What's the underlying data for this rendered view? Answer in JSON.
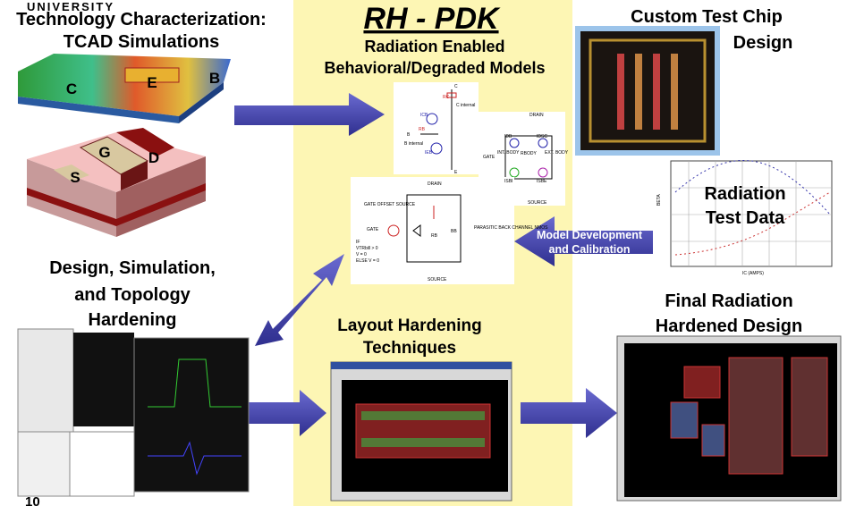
{
  "header": {
    "university": "UNIVERSITY",
    "page_number": "10"
  },
  "center": {
    "title": "RH - PDK",
    "subtitle": [
      "Radiation Enabled",
      "Behavioral/Degraded Models"
    ],
    "bjt_labels": [
      "C",
      "RC",
      "C internal",
      "ICB",
      "RB",
      "B",
      "B internal",
      "IEB",
      "E"
    ],
    "body_labels": [
      "DRAIN",
      "GATE",
      "SOURCE",
      "IDB",
      "IDSC",
      "INT. BODY",
      "RBODY",
      "EXT. BODY",
      "ISBI",
      "ISBE"
    ],
    "parasitic_labels": [
      "DRAIN",
      "GATE OFFSET SOURCE",
      "GATE",
      "IF",
      "VTRbill > 0",
      "V = 0",
      "ELSE V = 0",
      "PARASITIC BACK CHANNEL NMOS",
      "RB",
      "BB",
      "SOURCE"
    ]
  },
  "tcad": {
    "title": [
      "Technology Characterization:",
      "TCAD Simulations"
    ],
    "bjt_regions": [
      "C",
      "E",
      "B"
    ],
    "mos_regions": [
      "G",
      "S",
      "D"
    ]
  },
  "test_chip": {
    "title": [
      "Custom Test Chip",
      "Design"
    ]
  },
  "test_data": {
    "title": [
      "Radiation",
      "Test Data"
    ],
    "y_axis": "BETA",
    "x_axis": "IC (AMPS)"
  },
  "calibration_arrow": {
    "label": [
      "Model Development",
      "and Calibration"
    ]
  },
  "design_sim": {
    "title": [
      "Design, Simulation,",
      "and Topology",
      "Hardening"
    ]
  },
  "layout": {
    "title": [
      "Layout Hardening",
      "Techniques"
    ]
  },
  "final": {
    "title": [
      "Final Radiation",
      "Hardened Design"
    ]
  }
}
